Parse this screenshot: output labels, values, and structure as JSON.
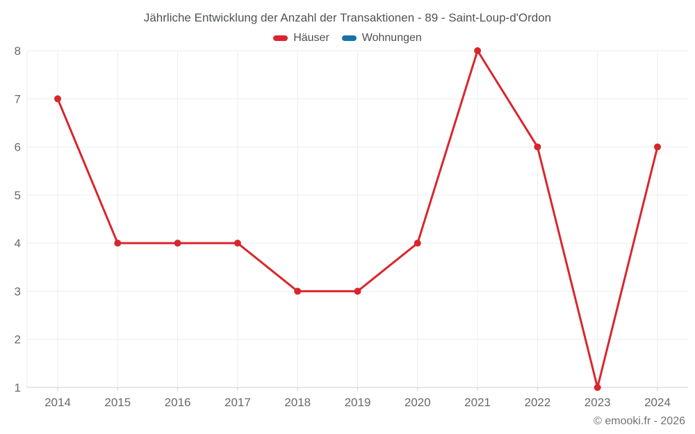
{
  "title": "Jährliche Entwicklung der Anzahl der Transaktionen - 89 - Saint-Loup-d'Ordon",
  "legend": [
    {
      "label": "Häuser",
      "color": "#d8262c"
    },
    {
      "label": "Wohnungen",
      "color": "#1673a8"
    }
  ],
  "watermark": "© emooki.fr - 2026",
  "colors": {
    "grid": "#ededed",
    "axis_line": "#cfcfcf",
    "tick_mark": "#d6d6d6",
    "axis_label": "#66696c"
  },
  "chart_data": {
    "type": "line",
    "title": "Jährliche Entwicklung der Anzahl der Transaktionen - 89 - Saint-Loup-d'Ordon",
    "categories": [
      "2014",
      "2015",
      "2016",
      "2017",
      "2018",
      "2019",
      "2020",
      "2021",
      "2022",
      "2023",
      "2024"
    ],
    "series": [
      {
        "name": "Häuser",
        "color": "#d8262c",
        "values": [
          7,
          4,
          4,
          4,
          3,
          3,
          4,
          8,
          6,
          1,
          6
        ]
      },
      {
        "name": "Wohnungen",
        "color": "#1673a8",
        "values": []
      }
    ],
    "xlabel": "",
    "ylabel": "",
    "ylim": [
      1,
      8
    ],
    "yticks": [
      1,
      2,
      3,
      4,
      5,
      6,
      7,
      8
    ],
    "grid": true,
    "legend_position": "top",
    "marker_radius": 5,
    "line_width": 3
  }
}
